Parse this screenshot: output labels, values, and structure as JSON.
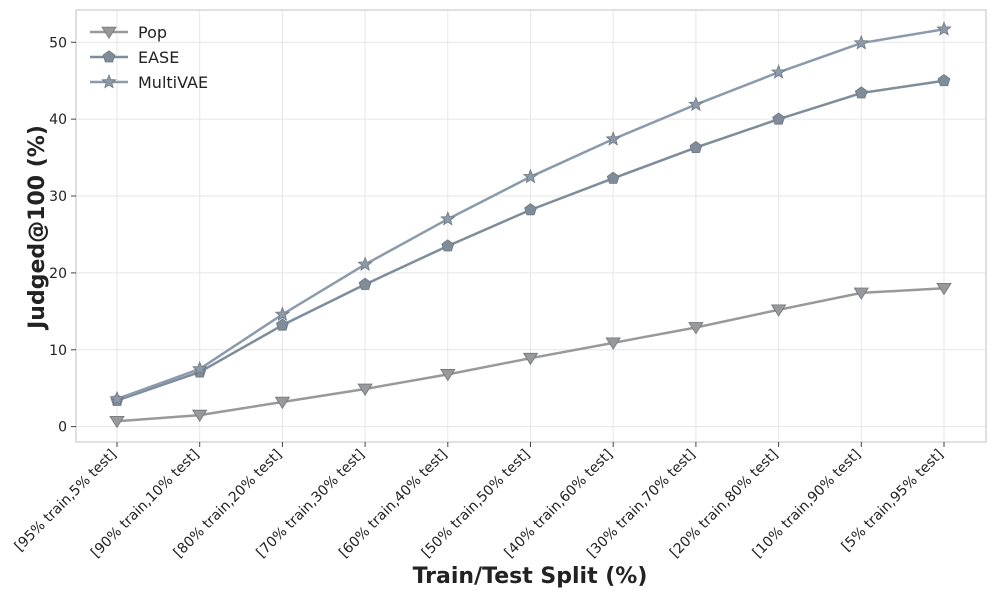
{
  "chart_data": {
    "type": "line",
    "title": "",
    "xlabel": "Train/Test Split (%)",
    "ylabel": "Judged@100 (%)",
    "categories": [
      "[95% train,5% test]",
      "[90% train,10% test]",
      "[80% train,20% test]",
      "[70% train,30% test]",
      "[60% train,40% test]",
      "[50% train,50% test]",
      "[40% train,60% test]",
      "[30% train,70% test]",
      "[20% train,80% test]",
      "[10% train,90% test]",
      "[5% train,95% test]"
    ],
    "yticks": [
      0,
      10,
      20,
      30,
      40,
      50
    ],
    "ylim": [
      -2,
      54.2
    ],
    "grid": true,
    "legend_position": "top-left",
    "series": [
      {
        "name": "Pop",
        "marker": "triangle-down",
        "color": "#999999",
        "values": [
          0.7,
          1.5,
          3.2,
          4.9,
          6.8,
          8.9,
          10.9,
          12.9,
          15.2,
          17.4,
          18.0
        ]
      },
      {
        "name": "EASE",
        "marker": "pentagon",
        "color": "#7f8c9a",
        "values": [
          3.4,
          7.1,
          13.2,
          18.5,
          23.5,
          28.2,
          32.3,
          36.3,
          40.0,
          43.4,
          45.0
        ]
      },
      {
        "name": "MultiVAE",
        "marker": "star",
        "color": "#8c9bab",
        "values": [
          3.6,
          7.5,
          14.6,
          21.1,
          27.0,
          32.5,
          37.4,
          41.9,
          46.1,
          49.9,
          51.7
        ]
      }
    ]
  }
}
